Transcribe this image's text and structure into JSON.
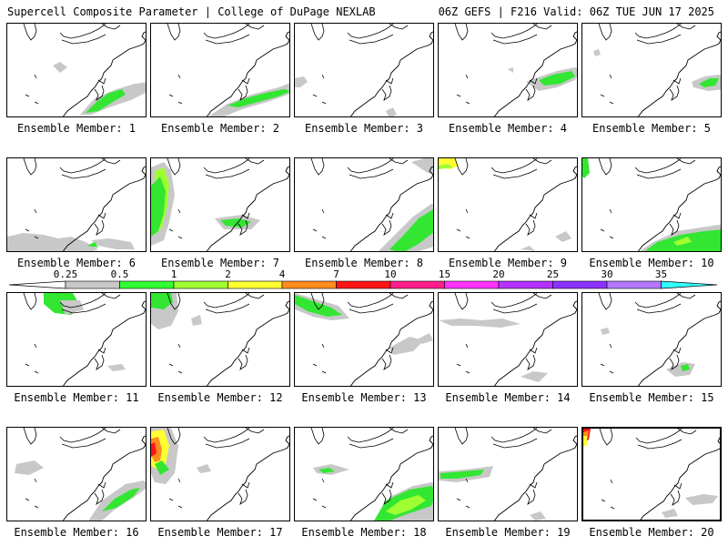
{
  "header": {
    "title_left": "Supercell Composite Parameter | College of DuPage NEXLAB",
    "title_right": "06Z GEFS | F216 Valid: 06Z TUE JUN 17 2025"
  },
  "colorbar": {
    "ticks": [
      "0.25",
      "0.5",
      "1",
      "2",
      "4",
      "7",
      "10",
      "15",
      "20",
      "25",
      "30",
      "35"
    ],
    "colors": [
      "#ffffff",
      "#c8c8c8",
      "#32ff32",
      "#a0ff32",
      "#ffff32",
      "#ff8c1e",
      "#ff1414",
      "#ff1e8c",
      "#ff32ff",
      "#b432ff",
      "#8c32ff",
      "#b478ff",
      "#32ffff"
    ]
  },
  "colors": {
    "gray": "#c8c8c8",
    "green": "#32e632",
    "lightgreen": "#a0ff32",
    "yellow": "#ffff32",
    "orange": "#ff8c1e",
    "red": "#ff1414"
  },
  "panels": [
    {
      "label": "Ensemble Member: 1"
    },
    {
      "label": "Ensemble Member: 2"
    },
    {
      "label": "Ensemble Member: 3"
    },
    {
      "label": "Ensemble Member: 4"
    },
    {
      "label": "Ensemble Member: 5"
    },
    {
      "label": "Ensemble Member: 6"
    },
    {
      "label": "Ensemble Member: 7"
    },
    {
      "label": "Ensemble Member: 8"
    },
    {
      "label": "Ensemble Member: 9"
    },
    {
      "label": "Ensemble Member: 10"
    },
    {
      "label": "Ensemble Member: 11"
    },
    {
      "label": "Ensemble Member: 12"
    },
    {
      "label": "Ensemble Member: 13"
    },
    {
      "label": "Ensemble Member: 14"
    },
    {
      "label": "Ensemble Member: 15"
    },
    {
      "label": "Ensemble Member: 16"
    },
    {
      "label": "Ensemble Member: 17"
    },
    {
      "label": "Ensemble Member: 18"
    },
    {
      "label": "Ensemble Member: 19"
    },
    {
      "label": "Ensemble Member: 20"
    }
  ]
}
